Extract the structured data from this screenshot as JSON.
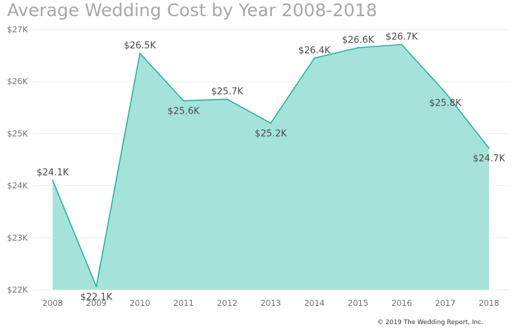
{
  "title": "Average Wedding Cost by Year 2008-2018",
  "credit": "© 2019 The Wedding Report, Inc.",
  "colors": {
    "area": "#a5e3da",
    "line": "#27b0a0",
    "grid": "#eeeeee"
  },
  "chart_data": {
    "type": "area",
    "title": "Average Wedding Cost by Year 2008-2018",
    "xlabel": "",
    "ylabel": "",
    "x": [
      "2008",
      "2009",
      "2010",
      "2011",
      "2012",
      "2013",
      "2014",
      "2015",
      "2016",
      "2017",
      "2018"
    ],
    "values": [
      24100,
      22060,
      26540,
      25630,
      25660,
      25200,
      26450,
      26650,
      26710,
      25790,
      24720
    ],
    "data_labels": [
      "$24.1K",
      "$22.1K",
      "$26.5K",
      "$25.6K",
      "$25.7K",
      "$25.2K",
      "$26.4K",
      "$26.6K",
      "$26.7K",
      "$25.8K",
      "$24.7K"
    ],
    "yticks": [
      22000,
      23000,
      24000,
      25000,
      26000,
      27000
    ],
    "ytick_labels": [
      "$22K",
      "$23K",
      "$24K",
      "$25K",
      "$26K",
      "$27K"
    ],
    "ylim": [
      22000,
      27000
    ],
    "grid": true,
    "legend": "none"
  }
}
